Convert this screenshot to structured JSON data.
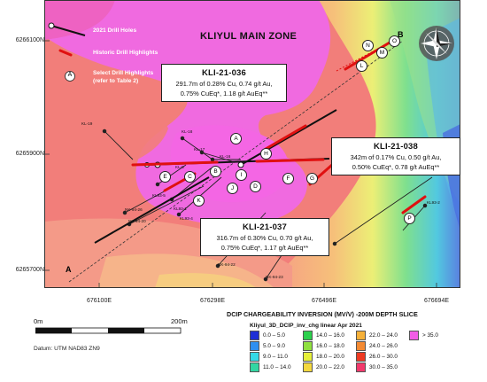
{
  "map": {
    "title": "KLIYUL MAIN ZONE",
    "y_labels": [
      "6266100N",
      "6265900N",
      "6265700N"
    ],
    "x_labels": [
      "676100E",
      "676298E",
      "676496E",
      "676694E"
    ],
    "section_labels": {
      "start": "A",
      "end": "B"
    },
    "legend_items": {
      "drill_holes_2021": "2021 Drill Holes",
      "historic_highlights": "Historic Drill Highlights",
      "select_highlights_1": "Select Drill Highlights",
      "select_highlights_2": "(refer to Table 2)",
      "marker_letter": "A"
    },
    "hole_labels": [
      "KL-19",
      "KL-18",
      "KL-17",
      "KL-16",
      "KL-8",
      "KL93-5",
      "KL93-1",
      "KL93-4",
      "NK-94-26",
      "NK-94-20",
      "NK-94-22",
      "NK-94-23",
      "KL93-2"
    ],
    "highlight_markers": [
      "A",
      "B",
      "C",
      "D",
      "E",
      "F",
      "G",
      "H",
      "I",
      "J",
      "K",
      "L",
      "M",
      "N",
      "O",
      "P"
    ]
  },
  "callouts": {
    "kli036": {
      "title": "KLI-21-036",
      "line1": "291.7m of 0.28% Cu, 0.74 g/t Au,",
      "line2": "0.75% CuEq*, 1.18 g/t AuEq**"
    },
    "kli038": {
      "title": "KLI-21-038",
      "line1": "342m of 0.17% Cu, 0.50 g/t Au,",
      "line2": "0.50% CuEq*, 0.78 g/t AuEq**"
    },
    "kli037": {
      "title": "KLI-21-037",
      "line1": "316.7m of 0.30% Cu, 0.70 g/t Au,",
      "line2": "0.75% CuEq*, 1.17 g/t AuEq**"
    }
  },
  "scale_bar": {
    "start": "0m",
    "end": "200m"
  },
  "datum": "Datum: UTM NAD83 ZN9",
  "legend": {
    "title": "DCIP CHARGEABILITY INVERSION (MV/V) -200M DEPTH SLICE",
    "subtitle": "Kliyul_3D_DCIP_inv_chg linear Apr 2021",
    "classes": [
      {
        "label": "0.0 – 5.0",
        "color": "#1f2fd6"
      },
      {
        "label": "5.0 – 9.0",
        "color": "#2f8ff0"
      },
      {
        "label": "9.0 – 11.0",
        "color": "#35d9e6"
      },
      {
        "label": "11.0 – 14.0",
        "color": "#32d6a2"
      },
      {
        "label": "14.0 – 16.0",
        "color": "#2bd04c"
      },
      {
        "label": "16.0 – 18.0",
        "color": "#8fe03f"
      },
      {
        "label": "18.0 – 20.0",
        "color": "#e6f03a"
      },
      {
        "label": "20.0 – 22.0",
        "color": "#f4d83e"
      },
      {
        "label": "22.0 – 24.0",
        "color": "#f6b13a"
      },
      {
        "label": "24.0 – 26.0",
        "color": "#f48a32"
      },
      {
        "label": "26.0 – 30.0",
        "color": "#ee3a22"
      },
      {
        "label": "30.0 – 35.0",
        "color": "#f23a6c"
      },
      {
        "label": "> 35.0",
        "color": "#f25de6"
      }
    ]
  }
}
